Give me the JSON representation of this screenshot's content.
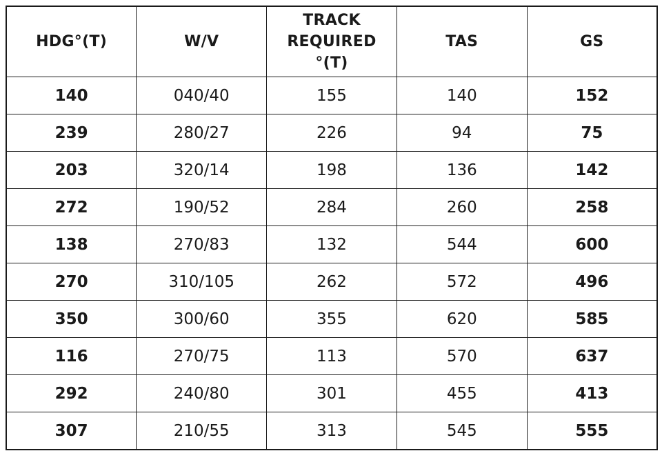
{
  "table": {
    "headers": [
      "HDG°(T)",
      "W/V",
      "TRACK\nREQUIRED\n°(T)",
      "TAS",
      "GS"
    ],
    "rows": [
      [
        "140",
        "040/40",
        "155",
        "140",
        "152"
      ],
      [
        "239",
        "280/27",
        "226",
        "94",
        "75"
      ],
      [
        "203",
        "320/14",
        "198",
        "136",
        "142"
      ],
      [
        "272",
        "190/52",
        "284",
        "260",
        "258"
      ],
      [
        "138",
        "270/83",
        "132",
        "544",
        "600"
      ],
      [
        "270",
        "310/105",
        "262",
        "572",
        "496"
      ],
      [
        "350",
        "300/60",
        "355",
        "620",
        "585"
      ],
      [
        "116",
        "270/75",
        "113",
        "570",
        "637"
      ],
      [
        "292",
        "240/80",
        "301",
        "455",
        "413"
      ],
      [
        "307",
        "210/55",
        "313",
        "545",
        "555"
      ]
    ],
    "bold_columns": [
      0,
      4
    ]
  }
}
